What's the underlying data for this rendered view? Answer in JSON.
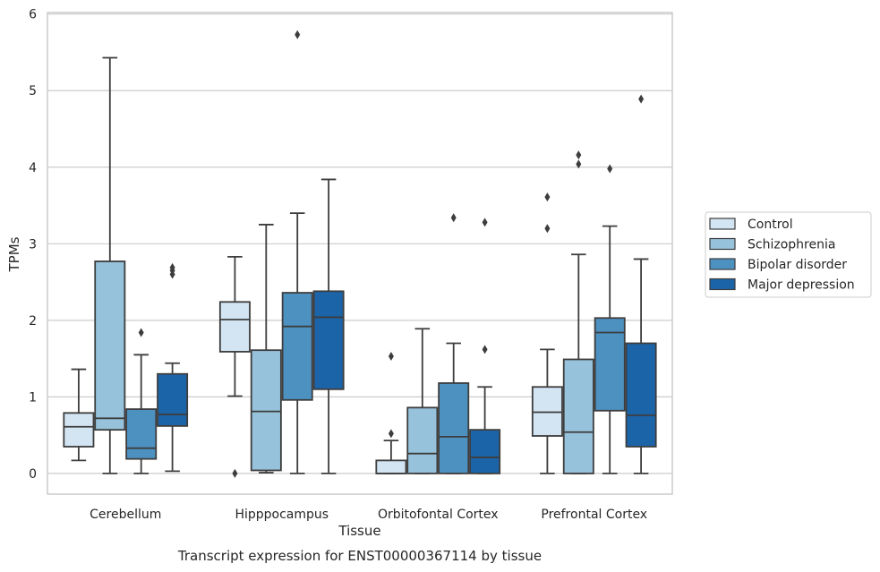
{
  "chart_data": {
    "type": "box",
    "title": "",
    "caption": "Transcript expression for ENST00000367114 by tissue",
    "xlabel": "Tissue",
    "ylabel": "TPMs",
    "ylim": [
      -0.27,
      6.02
    ],
    "yticks": [
      0,
      1,
      2,
      3,
      4,
      5,
      6
    ],
    "grid": "horizontal",
    "legend_position": "right",
    "categories": [
      "Cerebellum",
      "Hipppocampus",
      "Orbitofontal Cortex",
      "Prefrontal Cortex"
    ],
    "series": [
      {
        "name": "Control",
        "color": "#d3e4f3",
        "boxes": [
          {
            "whisker_low": 0.17,
            "q1": 0.35,
            "median": 0.61,
            "q3": 0.79,
            "whisker_high": 1.36,
            "outliers": []
          },
          {
            "whisker_low": 1.01,
            "q1": 1.59,
            "median": 2.01,
            "q3": 2.24,
            "whisker_high": 2.83,
            "outliers": [
              0.0
            ]
          },
          {
            "whisker_low": 0.0,
            "q1": 0.0,
            "median": 0.0,
            "q3": 0.17,
            "whisker_high": 0.43,
            "outliers": [
              0.52,
              1.53
            ]
          },
          {
            "whisker_low": 0.0,
            "q1": 0.49,
            "median": 0.8,
            "q3": 1.13,
            "whisker_high": 1.62,
            "outliers": [
              3.2,
              3.61
            ]
          }
        ]
      },
      {
        "name": "Schizophrenia",
        "color": "#97c2db",
        "boxes": [
          {
            "whisker_low": 0.0,
            "q1": 0.57,
            "median": 0.72,
            "q3": 2.77,
            "whisker_high": 5.43,
            "outliers": []
          },
          {
            "whisker_low": 0.01,
            "q1": 0.04,
            "median": 0.81,
            "q3": 1.61,
            "whisker_high": 3.25,
            "outliers": []
          },
          {
            "whisker_low": 0.0,
            "q1": 0.0,
            "median": 0.26,
            "q3": 0.86,
            "whisker_high": 1.89,
            "outliers": []
          },
          {
            "whisker_low": 0.0,
            "q1": 0.0,
            "median": 0.54,
            "q3": 1.49,
            "whisker_high": 2.86,
            "outliers": [
              4.04,
              4.16
            ]
          }
        ]
      },
      {
        "name": "Bipolar disorder",
        "color": "#4d91c1",
        "boxes": [
          {
            "whisker_low": 0.0,
            "q1": 0.19,
            "median": 0.33,
            "q3": 0.84,
            "whisker_high": 1.55,
            "outliers": [
              1.84
            ]
          },
          {
            "whisker_low": 0.0,
            "q1": 0.96,
            "median": 1.92,
            "q3": 2.36,
            "whisker_high": 3.4,
            "outliers": [
              5.73
            ]
          },
          {
            "whisker_low": 0.0,
            "q1": 0.0,
            "median": 0.48,
            "q3": 1.18,
            "whisker_high": 1.7,
            "outliers": [
              3.34
            ]
          },
          {
            "whisker_low": 0.0,
            "q1": 0.82,
            "median": 1.84,
            "q3": 2.03,
            "whisker_high": 3.23,
            "outliers": [
              3.98
            ]
          }
        ]
      },
      {
        "name": "Major depression",
        "color": "#1c64a8",
        "boxes": [
          {
            "whisker_low": 0.03,
            "q1": 0.62,
            "median": 0.77,
            "q3": 1.3,
            "whisker_high": 1.44,
            "outliers": [
              2.6,
              2.65,
              2.69
            ]
          },
          {
            "whisker_low": 0.0,
            "q1": 1.1,
            "median": 2.04,
            "q3": 2.38,
            "whisker_high": 3.84,
            "outliers": []
          },
          {
            "whisker_low": 0.0,
            "q1": 0.0,
            "median": 0.21,
            "q3": 0.57,
            "whisker_high": 1.13,
            "outliers": [
              1.62,
              3.28
            ]
          },
          {
            "whisker_low": 0.0,
            "q1": 0.35,
            "median": 0.76,
            "q3": 1.7,
            "whisker_high": 2.8,
            "outliers": [
              4.89
            ]
          }
        ]
      }
    ]
  }
}
